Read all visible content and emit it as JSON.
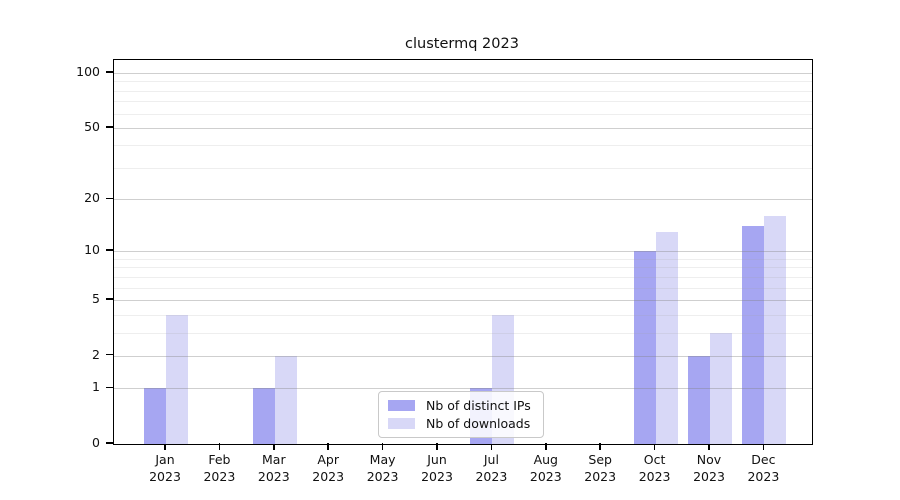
{
  "title": "clustermq 2023",
  "legend": {
    "items": [
      {
        "label": "Nb of distinct IPs",
        "color": "#a6a6f2"
      },
      {
        "label": "Nb of downloads",
        "color": "#d8d8f7"
      }
    ]
  },
  "y_axis_tick_labels": [
    "0",
    "1",
    "2",
    "5",
    "10",
    "20",
    "50",
    "100"
  ],
  "x_axis_year_label": "2023",
  "chart_data": {
    "type": "bar",
    "title": "clustermq 2023",
    "categories": [
      "Jan",
      "Feb",
      "Mar",
      "Apr",
      "May",
      "Jun",
      "Jul",
      "Aug",
      "Sep",
      "Oct",
      "Nov",
      "Dec"
    ],
    "category_year": "2023",
    "series": [
      {
        "name": "Nb of distinct IPs",
        "color": "#a6a6f2",
        "values": [
          1,
          0,
          1,
          0,
          0,
          0,
          1,
          0,
          0,
          10,
          2,
          14
        ]
      },
      {
        "name": "Nb of downloads",
        "color": "#d8d8f7",
        "values": [
          4,
          0,
          2,
          0,
          0,
          0,
          4,
          0,
          0,
          13,
          3,
          16
        ]
      }
    ],
    "xlabel": "",
    "ylabel": "",
    "yscale": "log1p",
    "ylim": [
      0,
      118
    ],
    "y_major_ticks": [
      0,
      1,
      2,
      5,
      10,
      20,
      50,
      100
    ],
    "y_minor_gridlines": [
      3,
      4,
      6,
      7,
      8,
      9,
      30,
      40,
      60,
      70,
      80,
      90
    ],
    "grid": "horizontal",
    "legend_position": "lower center (inside plot)"
  }
}
